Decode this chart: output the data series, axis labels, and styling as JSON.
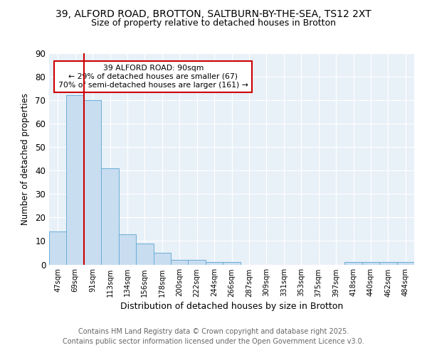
{
  "title1": "39, ALFORD ROAD, BROTTON, SALTBURN-BY-THE-SEA, TS12 2XT",
  "title2": "Size of property relative to detached houses in Brotton",
  "xlabel": "Distribution of detached houses by size in Brotton",
  "ylabel": "Number of detached properties",
  "bin_labels": [
    "47sqm",
    "69sqm",
    "91sqm",
    "113sqm",
    "134sqm",
    "156sqm",
    "178sqm",
    "200sqm",
    "222sqm",
    "244sqm",
    "266sqm",
    "287sqm",
    "309sqm",
    "331sqm",
    "353sqm",
    "375sqm",
    "397sqm",
    "418sqm",
    "440sqm",
    "462sqm",
    "484sqm"
  ],
  "bar_values": [
    14,
    72,
    70,
    41,
    13,
    9,
    5,
    2,
    2,
    1,
    1,
    0,
    0,
    0,
    0,
    0,
    0,
    1,
    1,
    1,
    1
  ],
  "bar_color": "#c8ddf0",
  "bar_edge_color": "#6aaed6",
  "vline_x_index": 2,
  "vline_color": "#cc0000",
  "annotation_text": "39 ALFORD ROAD: 90sqm\n← 29% of detached houses are smaller (67)\n70% of semi-detached houses are larger (161) →",
  "annotation_box_facecolor": "#ffffff",
  "annotation_box_edgecolor": "#cc0000",
  "ylim": [
    0,
    90
  ],
  "yticks": [
    0,
    10,
    20,
    30,
    40,
    50,
    60,
    70,
    80,
    90
  ],
  "footer_line1": "Contains HM Land Registry data © Crown copyright and database right 2025.",
  "footer_line2": "Contains public sector information licensed under the Open Government Licence v3.0.",
  "bg_color": "#ffffff",
  "plot_bg_color": "#e8f0f8"
}
